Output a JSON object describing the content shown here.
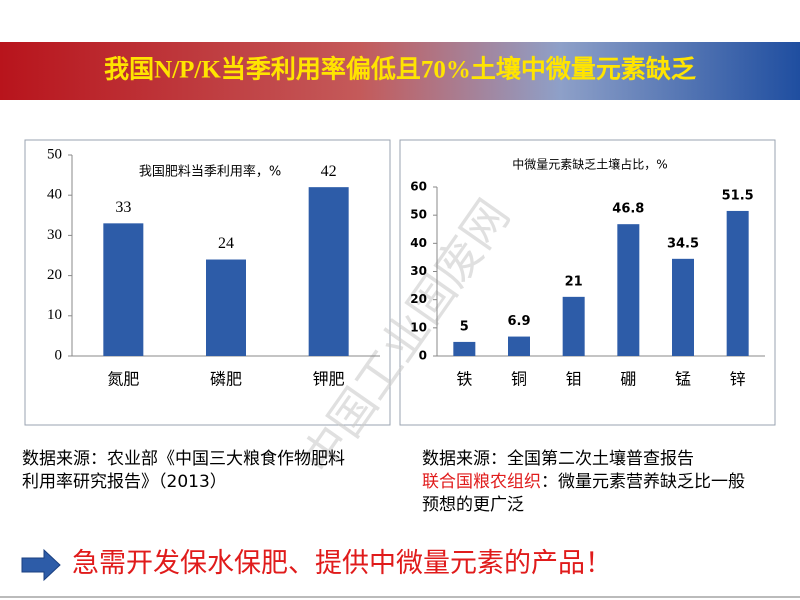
{
  "header": {
    "title": "我国N/P/K当季利用率偏低且70%土壤中微量元素缺乏"
  },
  "chart_data": [
    {
      "type": "bar",
      "title": "我国肥料当季利用率，%",
      "categories": [
        "氮肥",
        "磷肥",
        "钾肥"
      ],
      "values": [
        33,
        24,
        42
      ],
      "color": "#2d5ca8",
      "ylim": [
        0,
        50
      ],
      "yticks": [
        0,
        10,
        20,
        30,
        40,
        50
      ],
      "grid": false
    },
    {
      "type": "bar",
      "title": "中微量元素缺乏土壤占比，%",
      "categories": [
        "铁",
        "铜",
        "钼",
        "硼",
        "锰",
        "锌"
      ],
      "values": [
        5,
        6.9,
        21,
        46.8,
        34.5,
        51.5
      ],
      "color": "#2d5ca8",
      "ylim": [
        0,
        60
      ],
      "yticks": [
        0,
        10,
        20,
        30,
        40,
        50,
        60
      ],
      "grid": false
    }
  ],
  "sources": {
    "left": "数据来源：农业部《中国三大粮食作物肥料利用率研究报告》（2013）",
    "right_line1": "数据来源：全国第二次土壤普查报告",
    "right_org": "联合国粮农组织",
    "right_rest": "：微量元素营养缺乏比一般预想的更广泛"
  },
  "conclusion": "急需开发保水保肥、提供中微量元素的产品！",
  "watermark": "中国工业固废网"
}
